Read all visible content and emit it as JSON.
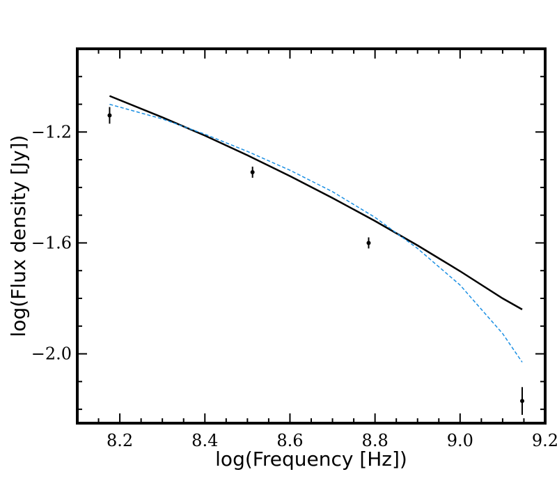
{
  "chart_data": {
    "type": "scatter",
    "title": "",
    "xlabel": "log(Frequency [Hz])",
    "ylabel": "log(Flux density [Jy])",
    "xlim": [
      8.1,
      9.2
    ],
    "ylim": [
      -2.25,
      -0.9
    ],
    "x_ticks": [
      8.2,
      8.4,
      8.6,
      8.8,
      9.0,
      9.2
    ],
    "x_tick_labels": [
      "8.2",
      "8.4",
      "8.6",
      "8.8",
      "9.0",
      "9.2"
    ],
    "y_ticks": [
      -1.2,
      -1.6,
      -2.0
    ],
    "y_tick_labels": [
      "−1.2",
      "−1.6",
      "−2.0"
    ],
    "grid": false,
    "series": [
      {
        "kind": "points_with_errorbars",
        "color": "#000000",
        "x": [
          8.176,
          8.512,
          8.785,
          9.146
        ],
        "y": [
          -1.14,
          -1.345,
          -1.6,
          -2.17
        ],
        "yerr": [
          0.03,
          0.02,
          0.02,
          0.05
        ]
      },
      {
        "kind": "line",
        "style": "solid",
        "color": "#000000",
        "x": [
          8.176,
          8.3,
          8.4,
          8.5,
          8.6,
          8.7,
          8.8,
          8.9,
          9.0,
          9.1,
          9.146
        ],
        "y": [
          -1.07,
          -1.147,
          -1.213,
          -1.284,
          -1.359,
          -1.438,
          -1.521,
          -1.609,
          -1.702,
          -1.8,
          -1.84
        ]
      },
      {
        "kind": "line",
        "style": "dashed",
        "color": "#1a8fe3",
        "x": [
          8.176,
          8.3,
          8.4,
          8.5,
          8.6,
          8.7,
          8.8,
          8.9,
          9.0,
          9.1,
          9.146
        ],
        "y": [
          -1.1,
          -1.153,
          -1.208,
          -1.27,
          -1.338,
          -1.415,
          -1.508,
          -1.62,
          -1.752,
          -1.927,
          -2.03
        ]
      }
    ]
  }
}
